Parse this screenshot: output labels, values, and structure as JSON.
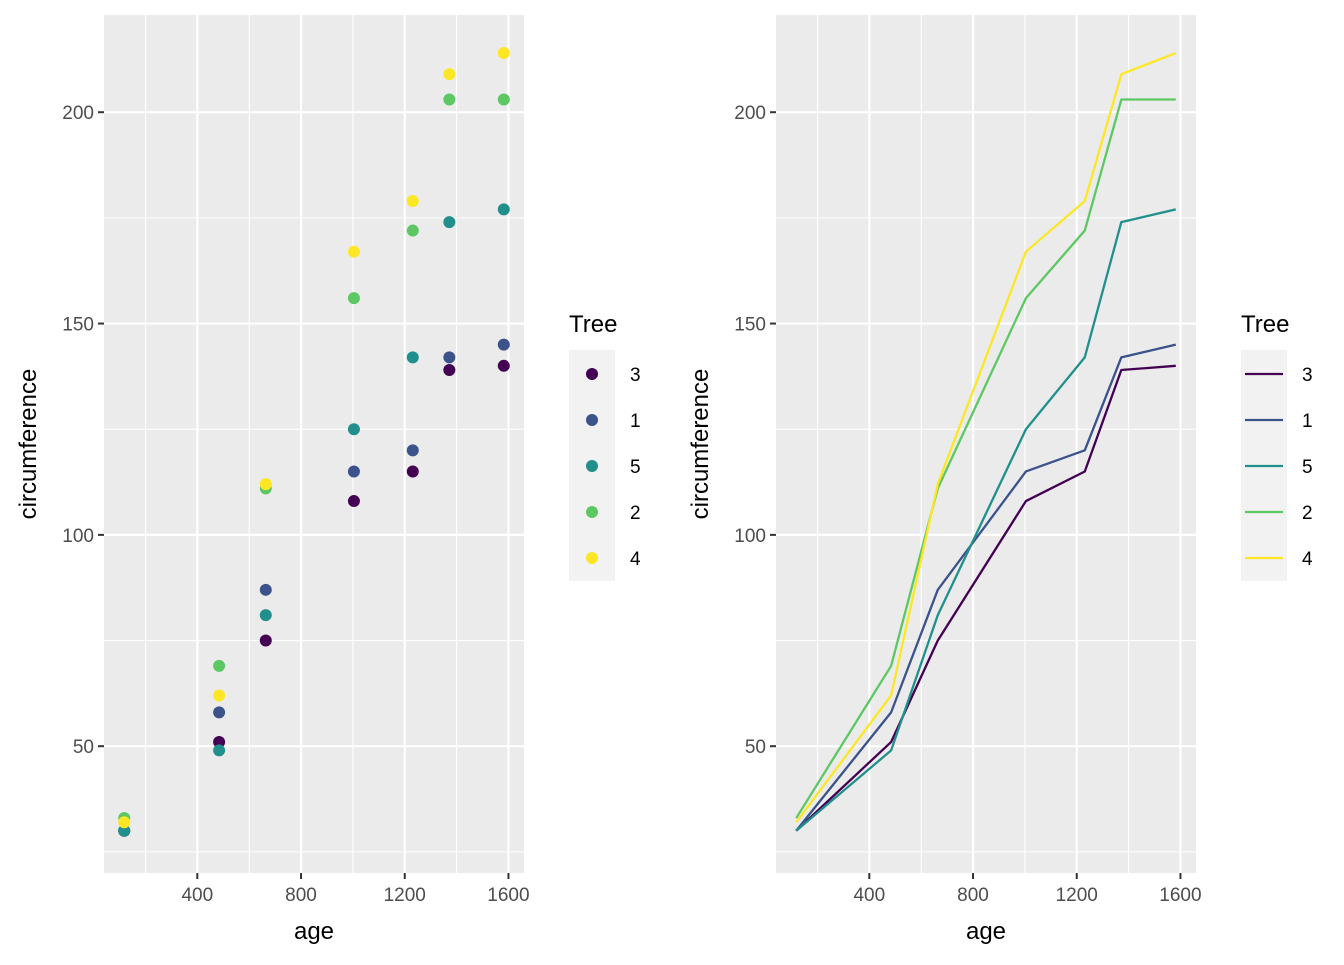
{
  "chart_data": [
    {
      "type": "scatter",
      "title": "",
      "xlabel": "age",
      "ylabel": "circumference",
      "xlim": [
        40,
        1660
      ],
      "ylim": [
        20,
        223
      ],
      "x_ticks": [
        400,
        800,
        1200,
        1600
      ],
      "y_ticks": [
        50,
        100,
        150,
        200
      ],
      "x_tick_labels": [
        "400",
        "800",
        "1200",
        "1600"
      ],
      "y_tick_labels": [
        "50",
        "100",
        "150",
        "200"
      ],
      "grid": true,
      "legend": {
        "title": "Tree",
        "position": "right"
      },
      "x": [
        118,
        484,
        664,
        1004,
        1231,
        1372,
        1582
      ],
      "series": [
        {
          "name": "3",
          "color": "#440154",
          "values": [
            30,
            51,
            75,
            108,
            115,
            139,
            140
          ]
        },
        {
          "name": "1",
          "color": "#3b528b",
          "values": [
            30,
            58,
            87,
            115,
            120,
            142,
            145
          ]
        },
        {
          "name": "5",
          "color": "#21908c",
          "values": [
            30,
            49,
            81,
            125,
            142,
            174,
            177
          ]
        },
        {
          "name": "2",
          "color": "#5dc863",
          "values": [
            33,
            69,
            111,
            156,
            172,
            203,
            203
          ]
        },
        {
          "name": "4",
          "color": "#fde725",
          "values": [
            32,
            62,
            112,
            167,
            179,
            209,
            214
          ]
        }
      ]
    },
    {
      "type": "line",
      "title": "",
      "xlabel": "age",
      "ylabel": "circumference",
      "xlim": [
        40,
        1660
      ],
      "ylim": [
        20,
        223
      ],
      "x_ticks": [
        400,
        800,
        1200,
        1600
      ],
      "y_ticks": [
        50,
        100,
        150,
        200
      ],
      "x_tick_labels": [
        "400",
        "800",
        "1200",
        "1600"
      ],
      "y_tick_labels": [
        "50",
        "100",
        "150",
        "200"
      ],
      "grid": true,
      "legend": {
        "title": "Tree",
        "position": "right"
      },
      "x": [
        118,
        484,
        664,
        1004,
        1231,
        1372,
        1582
      ],
      "series": [
        {
          "name": "3",
          "color": "#440154",
          "values": [
            30,
            51,
            75,
            108,
            115,
            139,
            140
          ]
        },
        {
          "name": "1",
          "color": "#3b528b",
          "values": [
            30,
            58,
            87,
            115,
            120,
            142,
            145
          ]
        },
        {
          "name": "5",
          "color": "#21908c",
          "values": [
            30,
            49,
            81,
            125,
            142,
            174,
            177
          ]
        },
        {
          "name": "2",
          "color": "#5dc863",
          "values": [
            33,
            69,
            111,
            156,
            172,
            203,
            203
          ]
        },
        {
          "name": "4",
          "color": "#fde725",
          "values": [
            32,
            62,
            112,
            167,
            179,
            209,
            214
          ]
        }
      ]
    }
  ]
}
